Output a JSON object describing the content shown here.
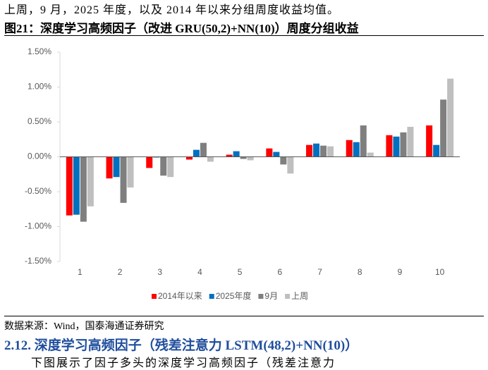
{
  "top_text": "上周，9 月，2025 年度，以及 2014 年以来分组周度收益均值。",
  "figure_title": "图21：深度学习高频因子（改进 GRU(50,2)+NN(10)）周度分组收益",
  "chart_data": {
    "type": "bar",
    "categories": [
      "1",
      "2",
      "3",
      "4",
      "5",
      "6",
      "7",
      "8",
      "9",
      "10"
    ],
    "series": [
      {
        "name": "2014年以来",
        "color": "#ff0000",
        "values": [
          -0.84,
          -0.31,
          -0.16,
          -0.04,
          0.03,
          0.12,
          0.17,
          0.24,
          0.31,
          0.45
        ]
      },
      {
        "name": "2025年度",
        "color": "#0070c0",
        "values": [
          -0.83,
          -0.29,
          -0.01,
          0.1,
          0.08,
          0.07,
          0.19,
          0.21,
          0.29,
          0.17
        ]
      },
      {
        "name": "9月",
        "color": "#7f7f7f",
        "values": [
          -0.93,
          -0.66,
          -0.27,
          0.2,
          -0.03,
          -0.11,
          0.16,
          0.45,
          0.35,
          0.82
        ]
      },
      {
        "name": "上周",
        "color": "#bfbfbf",
        "values": [
          -0.71,
          -0.44,
          -0.29,
          -0.07,
          -0.05,
          -0.24,
          0.15,
          0.06,
          0.43,
          1.12
        ]
      }
    ],
    "ylim": [
      -1.5,
      1.5
    ],
    "yticks": [
      {
        "value": -1.5,
        "label": "-1.50%"
      },
      {
        "value": -1.0,
        "label": "-1.00%"
      },
      {
        "value": -0.5,
        "label": "-0.50%"
      },
      {
        "value": 0,
        "label": "0.00%"
      },
      {
        "value": 0.5,
        "label": "0.50%"
      },
      {
        "value": 1.0,
        "label": "1.00%"
      },
      {
        "value": 1.5,
        "label": "1.50%"
      }
    ],
    "grid": false,
    "legend": "bottom"
  },
  "source": "数据来源：Wind，国泰海通证券研究",
  "section_heading": "2.12. 深度学习高频因子（残差注意力 LSTM(48,2)+NN(10)）",
  "bottom_text": "下图展示了因子多头的深度学习高频因子（残差注意力"
}
